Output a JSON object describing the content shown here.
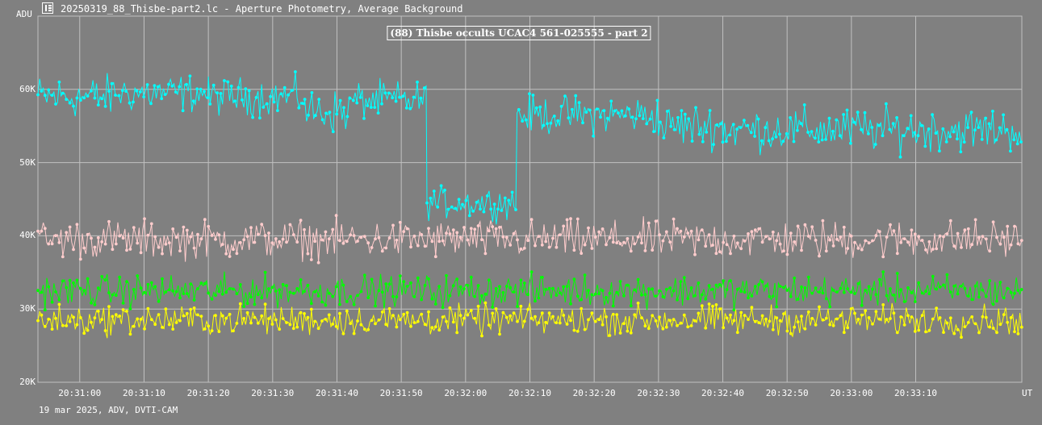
{
  "window": {
    "title": "20250319_88_Thisbe-part2.lc - Aperture Photometry, Average Background",
    "icon": "chart-app-icon"
  },
  "footer": "19 mar 2025, ADV, DVTI-CAM",
  "colors": {
    "background": "#808080",
    "grid": "#c0c0c0",
    "target": "#00ffff",
    "comp_pink": "#ffcccc",
    "comp_green": "#00ff00",
    "comp_yellow": "#ffff00"
  },
  "chart_data": {
    "type": "line",
    "title": "(88) Thisbe occults UCAC4 561-025555 - part 2",
    "ylabel": "ADU",
    "xlabel": "UT",
    "ylim": [
      20000,
      70000
    ],
    "xlim": [
      "20:30:53.5",
      "20:33:26.5"
    ],
    "yticks": [
      {
        "label": "20K",
        "value": 20000
      },
      {
        "label": "30K",
        "value": 30000
      },
      {
        "label": "40K",
        "value": 40000
      },
      {
        "label": "50K",
        "value": 50000
      },
      {
        "label": "60K",
        "value": 60000
      }
    ],
    "xticks": [
      "20:31:00",
      "20:31:10",
      "20:31:20",
      "20:31:30",
      "20:31:40",
      "20:31:50",
      "20:32:00",
      "20:32:10",
      "20:32:20",
      "20:32:30",
      "20:32:40",
      "20:32:50",
      "20:33:00",
      "20:33:10"
    ],
    "grid": true,
    "legend": "none",
    "series": [
      {
        "color_key": "target",
        "segments": [
          {
            "from": "20:30:53.5",
            "to": "20:31:05",
            "mean": 59000,
            "noise": 2500
          },
          {
            "from": "20:31:05",
            "to": "20:31:20",
            "mean": 59500,
            "noise": 2200
          },
          {
            "from": "20:31:20",
            "to": "20:31:35",
            "mean": 59000,
            "noise": 2200
          },
          {
            "from": "20:31:35",
            "to": "20:31:42",
            "mean": 57000,
            "noise": 2500
          },
          {
            "from": "20:31:42",
            "to": "20:31:54",
            "mean": 58500,
            "noise": 2200
          },
          {
            "from": "20:31:54",
            "to": "20:32:08",
            "mean": 44500,
            "noise": 1800
          },
          {
            "from": "20:32:08",
            "to": "20:32:30",
            "mean": 56500,
            "noise": 2200
          },
          {
            "from": "20:32:30",
            "to": "20:32:40",
            "mean": 55000,
            "noise": 2500
          },
          {
            "from": "20:32:40",
            "to": "20:33:26.5",
            "mean": 54500,
            "noise": 2500
          }
        ]
      },
      {
        "color_key": "comp_pink",
        "segments": [
          {
            "from": "20:30:53.5",
            "to": "20:33:26.5",
            "mean": 39500,
            "noise": 2200
          }
        ]
      },
      {
        "color_key": "comp_green",
        "segments": [
          {
            "from": "20:30:53.5",
            "to": "20:33:26.5",
            "mean": 32500,
            "noise": 1800
          }
        ]
      },
      {
        "color_key": "comp_yellow",
        "segments": [
          {
            "from": "20:30:53.5",
            "to": "20:33:26.5",
            "mean": 28500,
            "noise": 1700
          }
        ]
      }
    ]
  }
}
